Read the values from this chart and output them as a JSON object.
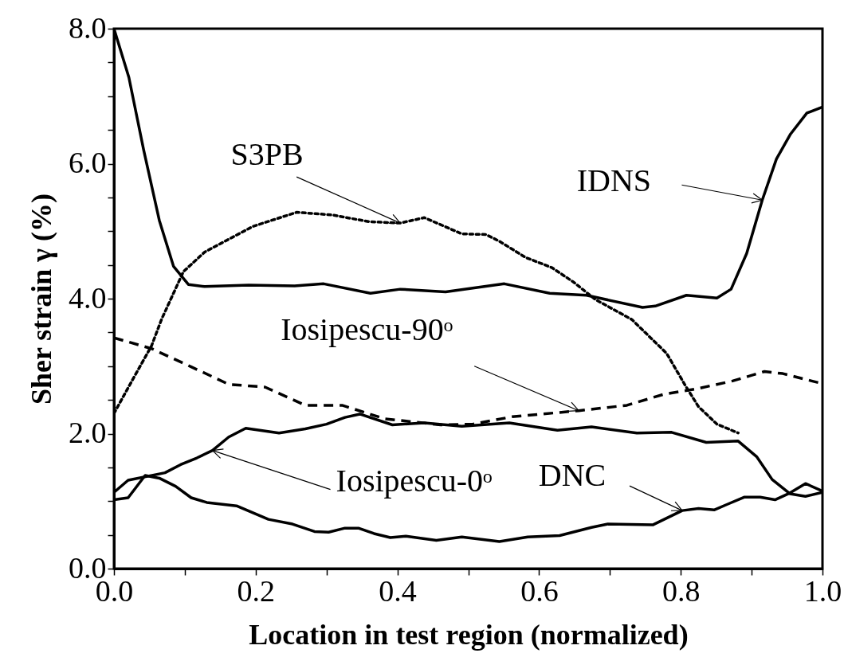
{
  "chart_data": {
    "type": "line",
    "xlabel": "Location in test region (normalized)",
    "ylabel": "Sher strain γ (%)",
    "xlim": [
      0,
      1
    ],
    "ylim": [
      0,
      8
    ],
    "xticks": [
      {
        "value": 0,
        "label": "0.0"
      },
      {
        "value": 0.1,
        "label": null
      },
      {
        "value": 0.2,
        "label": "0.2"
      },
      {
        "value": 0.3,
        "label": null
      },
      {
        "value": 0.4,
        "label": "0.4"
      },
      {
        "value": 0.5,
        "label": null
      },
      {
        "value": 0.6,
        "label": "0.6"
      },
      {
        "value": 0.7,
        "label": null
      },
      {
        "value": 0.8,
        "label": "0.8"
      },
      {
        "value": 0.9,
        "label": null
      },
      {
        "value": 1,
        "label": "1.0"
      }
    ],
    "yticks": [
      {
        "value": 0,
        "label": "0.0"
      },
      {
        "value": 0.5,
        "label": null
      },
      {
        "value": 1,
        "label": null
      },
      {
        "value": 1.5,
        "label": null
      },
      {
        "value": 2,
        "label": "2.0"
      },
      {
        "value": 2.5,
        "label": null
      },
      {
        "value": 3,
        "label": null
      },
      {
        "value": 3.5,
        "label": null
      },
      {
        "value": 4,
        "label": "4.0"
      },
      {
        "value": 4.5,
        "label": null
      },
      {
        "value": 5,
        "label": null
      },
      {
        "value": 5.5,
        "label": null
      },
      {
        "value": 6,
        "label": "6.0"
      },
      {
        "value": 6.5,
        "label": null
      },
      {
        "value": 7,
        "label": null
      },
      {
        "value": 7.5,
        "label": null
      },
      {
        "value": 8,
        "label": "8.0"
      }
    ],
    "series": [
      {
        "color": "#000000",
        "line_style": "solid",
        "x": [
          0,
          0.021,
          0.042,
          0.064,
          0.084,
          0.105,
          0.128,
          0.19,
          0.255,
          0.296,
          0.362,
          0.404,
          0.468,
          0.551,
          0.615,
          0.667,
          0.746,
          0.764,
          0.808,
          0.851,
          0.871,
          0.893,
          0.915,
          0.935,
          0.955,
          0.978,
          1.0
        ],
        "values": [
          8.0,
          7.28,
          6.2,
          5.16,
          4.48,
          4.21,
          4.18,
          4.2,
          4.19,
          4.22,
          4.08,
          4.14,
          4.1,
          4.22,
          4.08,
          4.05,
          3.87,
          3.89,
          4.05,
          4.01,
          4.14,
          4.67,
          5.46,
          6.07,
          6.44,
          6.75,
          6.84
        ]
      },
      {
        "color": "#000000",
        "line_style": "dotted",
        "x": [
          0,
          0.03,
          0.053,
          0.067,
          0.098,
          0.128,
          0.196,
          0.258,
          0.308,
          0.36,
          0.404,
          0.438,
          0.491,
          0.525,
          0.544,
          0.581,
          0.618,
          0.648,
          0.679,
          0.731,
          0.78,
          0.806,
          0.825,
          0.851,
          0.881
        ],
        "values": [
          2.3,
          2.87,
          3.3,
          3.69,
          4.4,
          4.69,
          5.07,
          5.28,
          5.24,
          5.14,
          5.12,
          5.2,
          4.96,
          4.95,
          4.85,
          4.61,
          4.46,
          4.25,
          3.99,
          3.69,
          3.19,
          2.72,
          2.4,
          2.14,
          2.01
        ]
      },
      {
        "color": "#000000",
        "line_style": "dashed",
        "x": [
          0,
          0.053,
          0.109,
          0.162,
          0.213,
          0.27,
          0.322,
          0.382,
          0.461,
          0.506,
          0.562,
          0.656,
          0.724,
          0.775,
          0.825,
          0.873,
          0.918,
          0.944,
          1.0
        ],
        "values": [
          3.42,
          3.26,
          2.99,
          2.73,
          2.69,
          2.42,
          2.42,
          2.22,
          2.13,
          2.14,
          2.25,
          2.34,
          2.42,
          2.58,
          2.67,
          2.78,
          2.92,
          2.89,
          2.74
        ]
      },
      {
        "color": "#000000",
        "line_style": "solid",
        "x": [
          0,
          0.02,
          0.072,
          0.094,
          0.117,
          0.139,
          0.162,
          0.186,
          0.233,
          0.27,
          0.3,
          0.326,
          0.347,
          0.393,
          0.438,
          0.491,
          0.558,
          0.626,
          0.674,
          0.738,
          0.787,
          0.836,
          0.881,
          0.907,
          0.929,
          0.954,
          0.976,
          1.0
        ],
        "values": [
          1.13,
          1.31,
          1.42,
          1.54,
          1.64,
          1.75,
          1.95,
          2.08,
          2.01,
          2.07,
          2.14,
          2.24,
          2.29,
          2.13,
          2.16,
          2.11,
          2.16,
          2.05,
          2.1,
          2.01,
          2.02,
          1.87,
          1.89,
          1.66,
          1.32,
          1.11,
          1.07,
          1.13
        ]
      },
      {
        "color": "#000000",
        "line_style": "solid",
        "x": [
          0,
          0.02,
          0.044,
          0.064,
          0.087,
          0.109,
          0.131,
          0.173,
          0.218,
          0.252,
          0.283,
          0.303,
          0.326,
          0.345,
          0.367,
          0.39,
          0.412,
          0.455,
          0.491,
          0.544,
          0.584,
          0.629,
          0.674,
          0.697,
          0.761,
          0.802,
          0.825,
          0.847,
          0.865,
          0.89,
          0.912,
          0.933,
          0.952,
          0.976,
          1.0
        ],
        "values": [
          1.02,
          1.05,
          1.38,
          1.34,
          1.22,
          1.05,
          0.98,
          0.93,
          0.73,
          0.66,
          0.55,
          0.54,
          0.6,
          0.6,
          0.52,
          0.46,
          0.48,
          0.42,
          0.47,
          0.4,
          0.47,
          0.49,
          0.61,
          0.66,
          0.65,
          0.86,
          0.89,
          0.87,
          0.95,
          1.06,
          1.06,
          1.02,
          1.11,
          1.26,
          1.15
        ]
      }
    ],
    "annotations": [
      {
        "text": "S3PB",
        "x": 0.404,
        "y": 5.12
      },
      {
        "text": "IDNS",
        "x": 0.915,
        "y": 5.46
      },
      {
        "text": "Iosipescu-90ᵒ",
        "x": 0.656,
        "y": 2.34
      },
      {
        "text": "Iosipescu-0ᵒ",
        "x": 0.139,
        "y": 1.75
      },
      {
        "text": "DNC",
        "x": 0.802,
        "y": 0.86
      }
    ]
  }
}
